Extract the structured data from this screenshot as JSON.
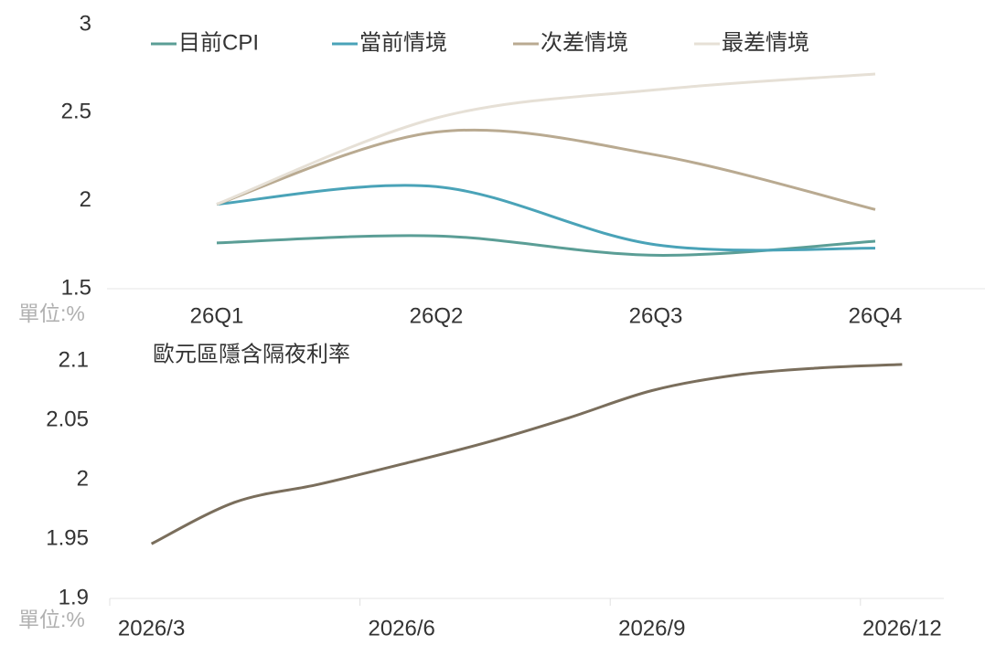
{
  "chart_data": [
    {
      "type": "line",
      "categories": [
        "26Q1",
        "26Q2",
        "26Q3",
        "26Q4"
      ],
      "series": [
        {
          "name": "目前CPI",
          "color": "#5b9e96",
          "values": [
            1.76,
            1.8,
            1.69,
            1.77
          ]
        },
        {
          "name": "當前情境",
          "color": "#4aa3b8",
          "values": [
            1.98,
            2.08,
            1.75,
            1.73
          ]
        },
        {
          "name": "次差情境",
          "color": "#b9aa91",
          "values": [
            1.98,
            2.39,
            2.26,
            1.95
          ]
        },
        {
          "name": "最差情境",
          "color": "#e6e0d6",
          "values": [
            1.98,
            2.47,
            2.63,
            2.72
          ]
        }
      ],
      "ylim": [
        1.5,
        3
      ],
      "yticks": [
        1.5,
        2,
        2.5,
        3
      ],
      "y_unit": "單位:%",
      "legend": "top"
    },
    {
      "type": "line",
      "categories": [
        "2026/3",
        null,
        null,
        "2026/6",
        null,
        null,
        "2026/9",
        null,
        null,
        "2026/12"
      ],
      "series": [
        {
          "name": "歐元區隱含隔夜利率",
          "color": "#7a6e5c",
          "values": [
            1.946,
            1.981,
            1.996,
            2.013,
            2.031,
            2.052,
            2.075,
            2.088,
            2.094,
            2.097
          ]
        }
      ],
      "ylim": [
        1.9,
        2.1
      ],
      "yticks": [
        1.9,
        1.95,
        2,
        2.05,
        2.1
      ],
      "y_unit": "單位:%"
    }
  ]
}
